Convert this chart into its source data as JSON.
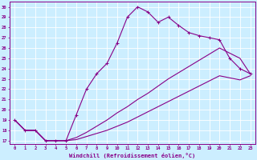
{
  "xlabel": "Windchill (Refroidissement éolien,°C)",
  "xlim": [
    -0.5,
    23.5
  ],
  "ylim": [
    16.7,
    30.5
  ],
  "xticks": [
    0,
    1,
    2,
    3,
    4,
    5,
    6,
    7,
    8,
    9,
    10,
    11,
    12,
    13,
    14,
    15,
    16,
    17,
    18,
    19,
    20,
    21,
    22,
    23
  ],
  "yticks": [
    17,
    18,
    19,
    20,
    21,
    22,
    23,
    24,
    25,
    26,
    27,
    28,
    29,
    30
  ],
  "bg_color": "#cceeff",
  "grid_color": "#aaddcc",
  "line_color": "#880088",
  "line1_x": [
    0,
    1,
    2,
    3,
    4,
    5,
    6,
    7,
    8,
    9,
    10,
    11,
    12,
    13,
    14,
    15,
    16,
    17,
    18,
    19,
    20,
    21,
    22,
    23
  ],
  "line1_y": [
    19,
    18,
    18,
    17,
    17,
    17,
    19.5,
    22,
    23.5,
    24.5,
    26.5,
    29.0,
    30.0,
    29.5,
    28.5,
    29.0,
    28.2,
    27.5,
    27.2,
    27.0,
    26.8,
    25.0,
    24.0,
    23.5
  ],
  "line2_x": [
    0,
    1,
    2,
    3,
    4,
    5,
    6,
    7,
    8,
    9,
    10,
    11,
    12,
    13,
    14,
    15,
    16,
    17,
    18,
    19,
    20,
    21,
    22,
    23
  ],
  "line2_y": [
    19,
    18,
    18,
    17,
    17,
    17,
    17.3,
    17.8,
    18.4,
    19.0,
    19.7,
    20.3,
    21.0,
    21.6,
    22.3,
    23.0,
    23.6,
    24.2,
    24.8,
    25.4,
    26.0,
    25.5,
    25.0,
    23.5
  ],
  "line3_x": [
    0,
    1,
    2,
    3,
    4,
    5,
    6,
    7,
    8,
    9,
    10,
    11,
    12,
    13,
    14,
    15,
    16,
    17,
    18,
    19,
    20,
    21,
    22,
    23
  ],
  "line3_y": [
    19,
    18,
    18,
    17,
    17,
    17,
    17.1,
    17.4,
    17.7,
    18.0,
    18.4,
    18.8,
    19.3,
    19.8,
    20.3,
    20.8,
    21.3,
    21.8,
    22.3,
    22.8,
    23.3,
    23.1,
    22.9,
    23.3
  ],
  "figsize": [
    3.2,
    2.0
  ],
  "dpi": 100
}
